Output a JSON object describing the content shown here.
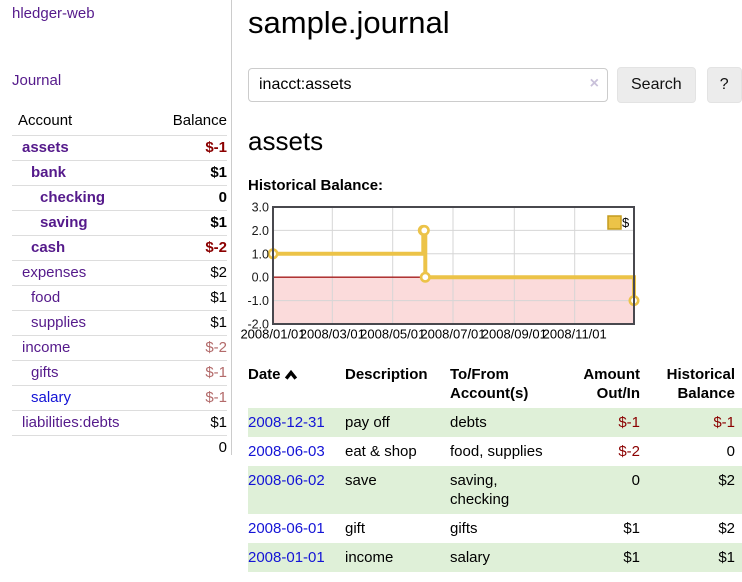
{
  "app": {
    "title": "hledger-web"
  },
  "colors": {
    "link_purple": "#551a8b",
    "link_blue": "#1414d6",
    "negative_dark": "#8b0000",
    "negative_soft": "#b36a6a",
    "row_green": "#dff0d8"
  },
  "sidebar": {
    "journal_label": "Journal",
    "table": {
      "account_header": "Account",
      "balance_header": "Balance",
      "rows": [
        {
          "name": "assets",
          "balance": "$-1",
          "depth": 1,
          "bold": true
        },
        {
          "name": "bank",
          "balance": "$1",
          "depth": 2,
          "bold": true
        },
        {
          "name": "checking",
          "balance": "0",
          "depth": 3,
          "bold": true
        },
        {
          "name": "saving",
          "balance": "$1",
          "depth": 3,
          "bold": true
        },
        {
          "name": "cash",
          "balance": "$-2",
          "depth": 2,
          "bold": true
        },
        {
          "name": "expenses",
          "balance": "$2",
          "depth": 1,
          "bold": false
        },
        {
          "name": "food",
          "balance": "$1",
          "depth": 2,
          "bold": false
        },
        {
          "name": "supplies",
          "balance": "$1",
          "depth": 2,
          "bold": false
        },
        {
          "name": "income",
          "balance": "$-2",
          "depth": 1,
          "bold": false
        },
        {
          "name": "gifts",
          "balance": "$-1",
          "depth": 2,
          "bold": false
        },
        {
          "name": "salary",
          "balance": "$-1",
          "depth": 2,
          "bold": false,
          "unvisited": true
        },
        {
          "name": "liabilities:debts",
          "balance": "$1",
          "depth": 1,
          "bold": false
        }
      ],
      "total": "0"
    }
  },
  "header": {
    "title": "sample.journal"
  },
  "search": {
    "value": "inacct:assets",
    "clear_icon": "×",
    "button_label": "Search",
    "help_label": "?"
  },
  "account_page": {
    "heading": "assets"
  },
  "chart_data": {
    "type": "line",
    "title": "Historical Balance:",
    "step": true,
    "legend": "$",
    "legend_position": "top-right",
    "x_range": [
      "2008-01-01",
      "2008-12-31"
    ],
    "ylim": [
      -2,
      3
    ],
    "y_ticks": [
      "3.0",
      "2.0",
      "1.0",
      "0.0",
      "-1.0",
      "-2.0"
    ],
    "x_ticks": [
      "2008/01/01",
      "2008/03/01",
      "2008/05/01",
      "2008/07/01",
      "2008/09/01",
      "2008/11/01"
    ],
    "series": [
      {
        "name": "$",
        "points": [
          [
            "2008-01-01",
            1
          ],
          [
            "2008-06-01",
            2
          ],
          [
            "2008-06-02",
            2
          ],
          [
            "2008-06-03",
            0
          ],
          [
            "2008-12-31",
            -1
          ]
        ]
      }
    ],
    "colors": {
      "line": "#ecc348",
      "marker_fill": "#ffffff",
      "legend_border": "#c49b1e",
      "negative_region": "#fbdbdb",
      "zero_line": "#a51c1c",
      "grid": "#d6d6d6",
      "border": "#48484e"
    }
  },
  "register_table": {
    "headers": {
      "date": "Date",
      "description": "Description",
      "accounts": "To/From Account(s)",
      "amount": "Amount Out/In",
      "balance": "Historical Balance"
    },
    "rows": [
      {
        "date": "2008-12-31",
        "description": "pay off",
        "accounts": "debts",
        "amount": "$-1",
        "balance": "$-1"
      },
      {
        "date": "2008-06-03",
        "description": "eat & shop",
        "accounts": "food, supplies",
        "amount": "$-2",
        "balance": "0"
      },
      {
        "date": "2008-06-02",
        "description": "save",
        "accounts": "saving, checking",
        "amount": "0",
        "balance": "$2"
      },
      {
        "date": "2008-06-01",
        "description": "gift",
        "accounts": "gifts",
        "amount": "$1",
        "balance": "$2"
      },
      {
        "date": "2008-01-01",
        "description": "income",
        "accounts": "salary",
        "amount": "$1",
        "balance": "$1"
      }
    ]
  }
}
